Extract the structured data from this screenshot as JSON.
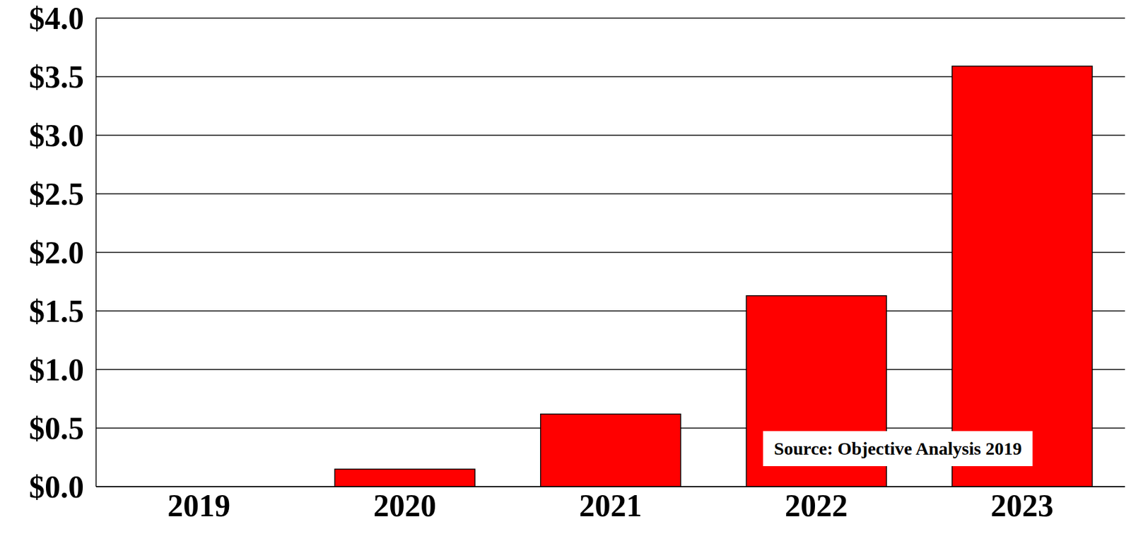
{
  "chart_data": {
    "type": "bar",
    "categories": [
      "2019",
      "2020",
      "2021",
      "2022",
      "2023"
    ],
    "values": [
      0,
      0.15,
      0.62,
      1.63,
      3.59
    ],
    "color": "#ff0000",
    "ylim": [
      0,
      4
    ],
    "yticks": [
      {
        "value": 0,
        "label": "$0.0"
      },
      {
        "value": 0.5,
        "label": "$0.5"
      },
      {
        "value": 1,
        "label": "$1.0"
      },
      {
        "value": 1.5,
        "label": "$1.5"
      },
      {
        "value": 2,
        "label": "$2.0"
      },
      {
        "value": 2.5,
        "label": "$2.5"
      },
      {
        "value": 3,
        "label": "$3.0"
      },
      {
        "value": 3.5,
        "label": "$3.5"
      },
      {
        "value": 4,
        "label": "$4.0"
      }
    ],
    "grid": true,
    "data_labels": false,
    "annotations": [
      "Source: Objective Analysis 2019"
    ]
  }
}
